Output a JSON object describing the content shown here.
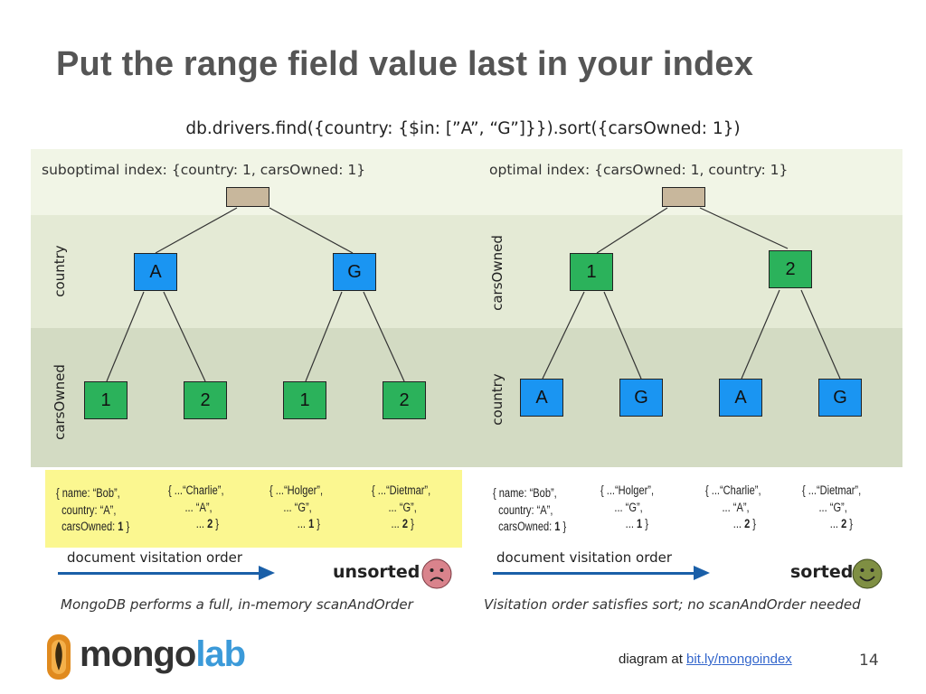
{
  "title": "Put the range field value last in your index",
  "query": "db.drivers.find({country: {$in: [”A”, “G”]}}).sort({carsOwned: 1})",
  "left": {
    "index_label": "suboptimal index: {country: 1, carsOwned: 1}",
    "upper_axis_label": "country",
    "lower_axis_label": "carsOwned",
    "level1": [
      "A",
      "G"
    ],
    "level2": [
      "1",
      "2",
      "1",
      "2"
    ],
    "docs": [
      {
        "l1": "{ name: “Bob”,",
        "l2": "  country: “A”,",
        "l3a": "  carsOwned: ",
        "l3b": "1",
        "l3c": " }"
      },
      {
        "l1": "{ ...“Charlie”,",
        "l2": "      ... “A”,",
        "l3a": "          ... ",
        "l3b": "2",
        "l3c": " }"
      },
      {
        "l1": "{ ...“Holger”,",
        "l2": "     ... “G”,",
        "l3a": "          ... ",
        "l3b": "1",
        "l3c": " }"
      },
      {
        "l1": "{ ...“Dietmar”,",
        "l2": "      ... “G”,",
        "l3a": "       ... ",
        "l3b": "2",
        "l3c": " }"
      }
    ],
    "visitation": "document visitation order",
    "result": "unsorted",
    "face_icon": "sad-face-icon",
    "caption": "MongoDB performs a full, in-memory scanAndOrder"
  },
  "right": {
    "index_label": "optimal index: {carsOwned: 1, country: 1}",
    "upper_axis_label": "carsOwned",
    "lower_axis_label": "country",
    "level1": [
      "1",
      "2"
    ],
    "level2": [
      "A",
      "G",
      "A",
      "G"
    ],
    "docs": [
      {
        "l1": "{ name: “Bob”,",
        "l2": "  country: “A”,",
        "l3a": "  carsOwned: ",
        "l3b": "1",
        "l3c": " }"
      },
      {
        "l1": "{ ...“Holger”,",
        "l2": "     ... “G”,",
        "l3a": "         ... ",
        "l3b": "1",
        "l3c": " }"
      },
      {
        "l1": "{ ...“Charlie”,",
        "l2": "      ... “A”,",
        "l3a": "          ... ",
        "l3b": "2",
        "l3c": " }"
      },
      {
        "l1": "{ ...“Dietmar”,",
        "l2": "      ... “G”,",
        "l3a": "          ... ",
        "l3b": "2",
        "l3c": " }"
      }
    ],
    "visitation": "document visitation order",
    "result": "sorted",
    "face_icon": "smiley-face-icon",
    "caption": "Visitation order satisfies sort; no scanAndOrder needed"
  },
  "footer": {
    "text": "diagram at ",
    "link": "bit.ly/mongoindex ",
    "page": "14"
  },
  "logo": {
    "part1": "mongo",
    "part2": "lab"
  },
  "colors": {
    "upper_node": "#1a95f2",
    "leaf_node": "#2bb25b",
    "root_node": "#c8b79c",
    "highlight": "#fbf790",
    "arrow": "#1a5fa8"
  }
}
